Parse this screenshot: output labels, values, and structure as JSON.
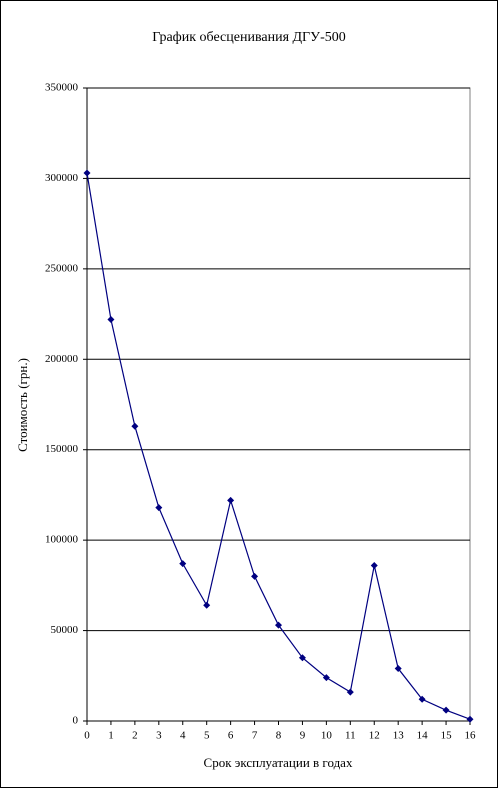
{
  "chart_data": {
    "type": "line",
    "title": "График обесценивания ДГУ-500",
    "x_label": "Срок эксплуатации в годах",
    "y_label": "Стоимость (грн.)",
    "x": [
      0,
      1,
      2,
      3,
      4,
      5,
      6,
      7,
      8,
      9,
      10,
      11,
      12,
      13,
      14,
      15,
      16
    ],
    "series": [
      {
        "name": "Стоимость",
        "color": "#000080",
        "values": [
          303000,
          222000,
          163000,
          118000,
          87000,
          64000,
          122000,
          80000,
          53000,
          35000,
          24000,
          16000,
          86000,
          29000,
          12000,
          6000,
          1000
        ]
      }
    ],
    "xlim": [
      0,
      16
    ],
    "xticks": [
      0,
      1,
      2,
      3,
      4,
      5,
      6,
      7,
      8,
      9,
      10,
      11,
      12,
      13,
      14,
      15,
      16
    ],
    "ylim": [
      0,
      350000
    ],
    "yticks": [
      0,
      50000,
      100000,
      150000,
      200000,
      250000,
      300000,
      350000
    ],
    "grid": true
  }
}
